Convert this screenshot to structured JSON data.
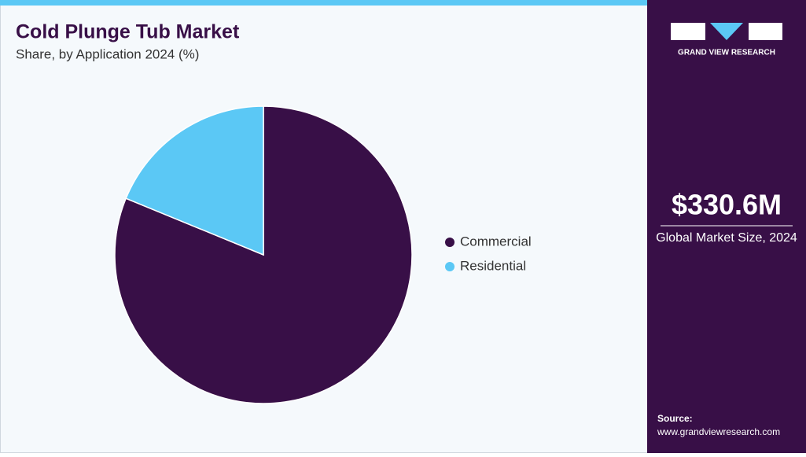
{
  "chart_data": {
    "type": "pie",
    "title": "Cold Plunge Tub Market",
    "subtitle": "Share, by Application 2024 (%)",
    "categories": [
      "Commercial",
      "Residential"
    ],
    "values": [
      81.2,
      18.8
    ],
    "colors": [
      "#380f47",
      "#5bc8f5"
    ],
    "legend": "right"
  },
  "panel": {
    "brand": "GRAND VIEW RESEARCH",
    "market_size": "$330.6M",
    "market_size_label": "Global Market Size, 2024",
    "source_label": "Source:",
    "source": "www.grandviewresearch.com"
  }
}
